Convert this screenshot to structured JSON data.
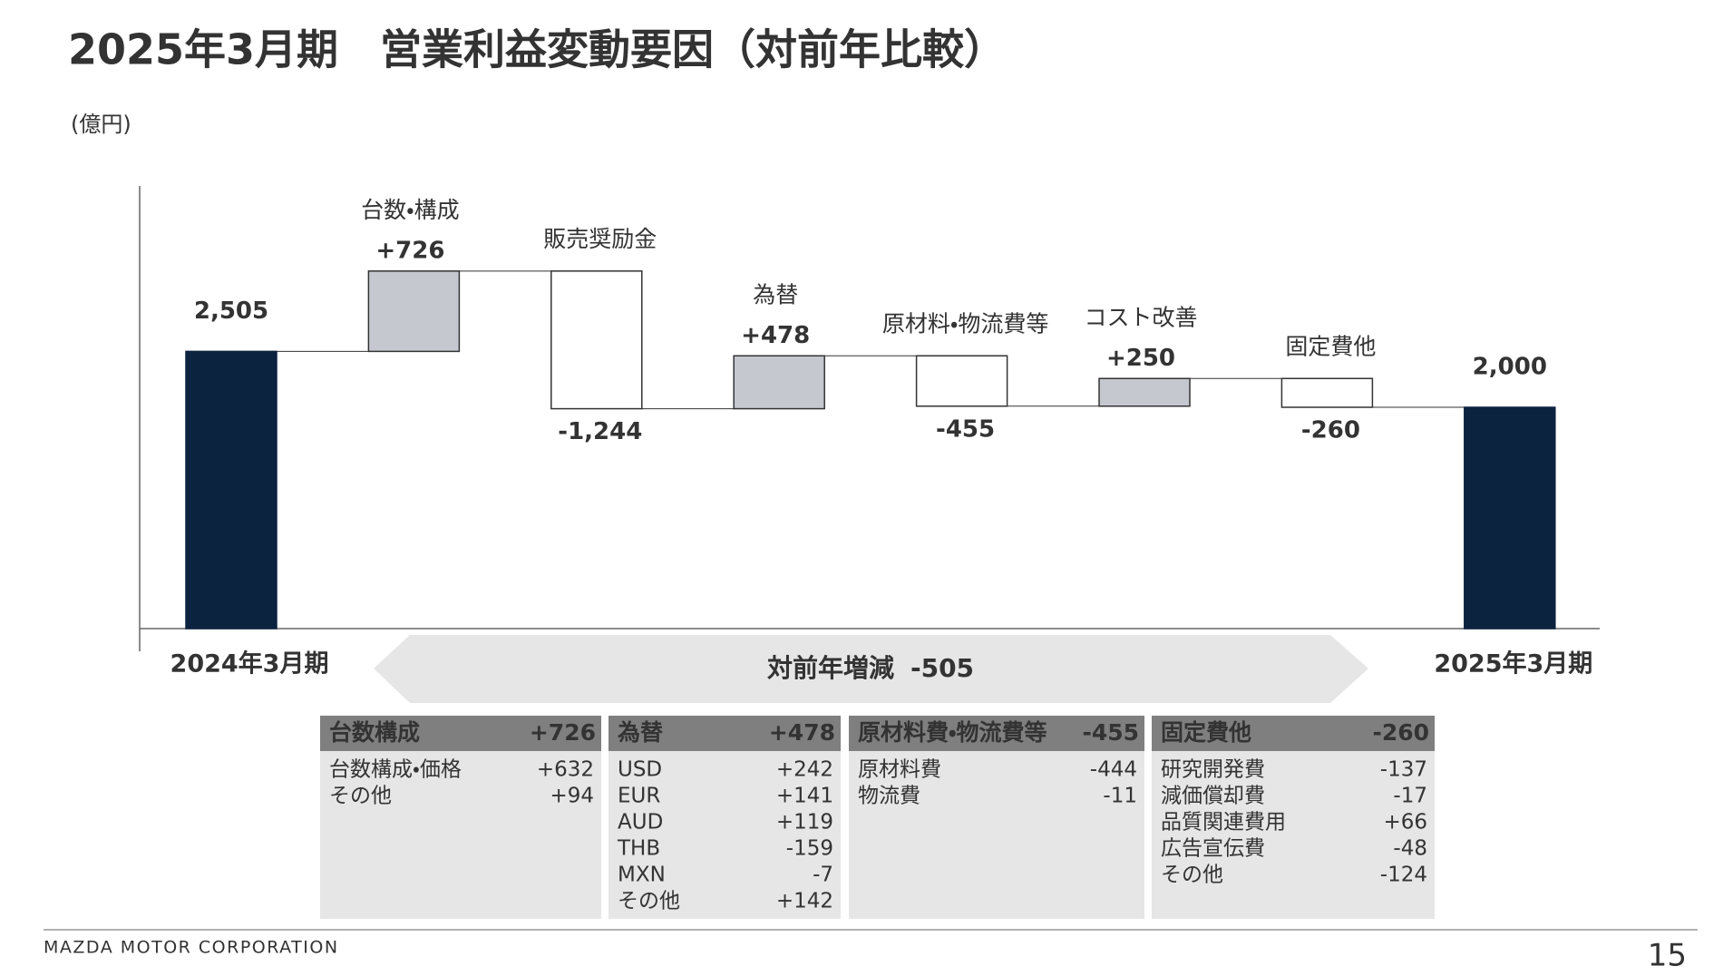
{
  "chart_data": {
    "type": "waterfall",
    "title": "2025年3月期　営業利益変動要因（対前年比較）",
    "unit": "(億円)",
    "categories": [
      "2024年3月期",
      "台数・構成",
      "販売奨励金",
      "為替",
      "原材料・物流費等",
      "コスト改善",
      "固定費他",
      "2025年3月期"
    ],
    "values": [
      2505,
      726,
      -1244,
      478,
      -455,
      250,
      -260,
      2000
    ],
    "value_labels": [
      "2,505",
      "+726",
      "-1,244",
      "+478",
      "-455",
      "+250",
      "-260",
      "2,000"
    ],
    "totals": [
      true,
      false,
      false,
      false,
      false,
      false,
      false,
      true
    ],
    "colors": {
      "total": "#0c2340",
      "increase": "#c5c8cf",
      "decrease": "#ffffff"
    },
    "ylim": [
      0,
      4000
    ],
    "change": {
      "label": "対前年増減",
      "value": -505
    }
  },
  "breakdown": [
    {
      "name": "台数構成",
      "value": "+726",
      "rows": [
        [
          "台数構成・価格",
          "+632"
        ],
        [
          "その他",
          "+94"
        ]
      ]
    },
    {
      "name": "為替",
      "value": "+478",
      "rows": [
        [
          "USD",
          "+242"
        ],
        [
          "EUR",
          "+141"
        ],
        [
          "AUD",
          "+119"
        ],
        [
          "THB",
          "-159"
        ],
        [
          "MXN",
          "-7"
        ],
        [
          "その他",
          "+142"
        ]
      ]
    },
    {
      "name": "原材料費・物流費等",
      "value": "-455",
      "rows": [
        [
          "原材料費",
          "-444"
        ],
        [
          "物流費",
          "-11"
        ]
      ]
    },
    {
      "name": "固定費他",
      "value": "-260",
      "rows": [
        [
          "研究開発費",
          "-137"
        ],
        [
          "減価償却費",
          "-17"
        ],
        [
          "品質関連費用",
          "+66"
        ],
        [
          "広告宣伝費",
          "-48"
        ],
        [
          "その他",
          "-124"
        ]
      ]
    }
  ],
  "footer": {
    "company": "MAZDA MOTOR CORPORATION",
    "page": "15"
  }
}
